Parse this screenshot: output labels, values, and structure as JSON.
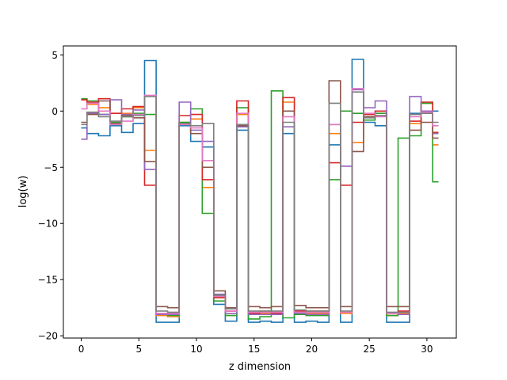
{
  "chart_data": {
    "type": "line",
    "step": true,
    "title": "",
    "xlabel": "z dimension",
    "ylabel": "log(w)",
    "xlim": [
      -1.55,
      32.55
    ],
    "ylim": [
      -20.2,
      5.8
    ],
    "xticks": [
      0,
      5,
      10,
      15,
      20,
      25,
      30
    ],
    "xtick_labels": [
      "0",
      "5",
      "10",
      "15",
      "20",
      "25",
      "30"
    ],
    "yticks": [
      5,
      0,
      -5,
      -10,
      -15,
      -20
    ],
    "ytick_labels": [
      "5",
      "0",
      "−5",
      "−10",
      "−15",
      "−20"
    ],
    "grid": false,
    "legend": "none",
    "x": [
      0,
      1,
      2,
      3,
      4,
      5,
      6,
      7,
      8,
      9,
      10,
      11,
      12,
      13,
      14,
      15,
      16,
      17,
      18,
      19,
      20,
      21,
      22,
      23,
      24,
      25,
      26,
      27,
      28,
      29,
      30,
      31
    ],
    "series": [
      {
        "color": "#1f77b4",
        "values": [
          -1.5,
          -2.0,
          -2.2,
          -1.3,
          -1.9,
          -1.1,
          4.5,
          -18.8,
          -18.8,
          -1.3,
          -2.7,
          -3.2,
          -17.2,
          -18.7,
          -1.7,
          -18.8,
          -18.7,
          -18.8,
          -2.0,
          -18.8,
          -18.7,
          -18.8,
          -3.0,
          -18.8,
          4.6,
          -1.0,
          -1.3,
          -18.8,
          -18.8,
          -0.2,
          0.0,
          0.0
        ]
      },
      {
        "color": "#ff7f0e",
        "values": [
          1.0,
          0.6,
          0.3,
          -0.2,
          -0.2,
          0.3,
          -3.5,
          -18.2,
          -18.3,
          -1.0,
          -0.7,
          -6.8,
          -16.6,
          -18.0,
          -0.3,
          -18.0,
          -18.0,
          -18.0,
          0.8,
          -18.0,
          -18.0,
          -18.0,
          -2.0,
          -18.0,
          -2.8,
          -0.5,
          -0.2,
          -18.2,
          -18.0,
          -1.1,
          0.7,
          -3.0
        ]
      },
      {
        "color": "#2ca02c",
        "values": [
          1.1,
          0.9,
          -0.3,
          -1.0,
          -0.5,
          -0.2,
          -0.3,
          -18.1,
          -18.2,
          -1.0,
          0.2,
          -9.1,
          -16.9,
          -18.2,
          0.3,
          -18.5,
          -18.3,
          1.8,
          -18.4,
          -18.1,
          -18.2,
          -18.2,
          -6.1,
          0.0,
          -0.2,
          -0.8,
          -0.2,
          -18.2,
          -2.4,
          -2.2,
          0.7,
          -6.3
        ]
      },
      {
        "color": "#d62728",
        "values": [
          1.0,
          0.8,
          1.1,
          -0.2,
          0.2,
          0.4,
          -6.6,
          -18.0,
          -18.0,
          -0.4,
          -0.3,
          -6.1,
          -16.6,
          -17.8,
          0.9,
          -18.0,
          -17.8,
          -18.0,
          1.2,
          -17.8,
          -17.8,
          -17.8,
          -4.6,
          -6.6,
          -1.0,
          -0.3,
          0.0,
          -18.0,
          -17.8,
          -0.9,
          0.8,
          -1.9
        ]
      },
      {
        "color": "#9467bd",
        "values": [
          -2.5,
          -0.2,
          -0.3,
          1.0,
          -0.3,
          0.1,
          -5.2,
          -18.1,
          -18.1,
          0.8,
          -1.7,
          -2.7,
          -16.3,
          -18.0,
          -1.4,
          -18.1,
          -18.1,
          -18.1,
          -1.4,
          -18.0,
          -18.1,
          -18.1,
          -1.2,
          -4.9,
          1.9,
          0.3,
          0.9,
          -18.0,
          -18.1,
          1.3,
          0.0,
          -2.0
        ]
      },
      {
        "color": "#8c564b",
        "values": [
          -1.0,
          -0.3,
          0.9,
          -1.1,
          -0.4,
          -0.6,
          -4.5,
          -17.4,
          -17.5,
          -1.1,
          -2.0,
          -5.0,
          -16.0,
          -17.5,
          -1.3,
          -17.4,
          -17.5,
          -17.4,
          0.0,
          -17.3,
          -17.5,
          -17.5,
          2.7,
          -17.4,
          -3.6,
          -0.5,
          -0.4,
          -17.4,
          -17.4,
          -1.7,
          -1.0,
          -2.4
        ]
      },
      {
        "color": "#e377c2",
        "values": [
          0.2,
          0.7,
          0.0,
          -1.2,
          -0.9,
          -0.3,
          1.4,
          -18.0,
          -18.0,
          -1.2,
          -1.5,
          -4.4,
          -16.5,
          -17.8,
          -0.2,
          -17.9,
          -17.9,
          -17.9,
          -0.5,
          -17.9,
          -17.9,
          -17.9,
          -1.2,
          -17.9,
          2.0,
          -0.2,
          -0.5,
          -18.0,
          -17.9,
          -0.5,
          -0.1,
          -1.3
        ]
      },
      {
        "color": "#7f7f7f",
        "values": [
          -1.2,
          -0.1,
          -0.5,
          -0.9,
          -0.5,
          -0.4,
          1.3,
          -17.8,
          -17.9,
          -1.1,
          -1.3,
          -1.1,
          -16.4,
          -17.6,
          -1.2,
          -17.8,
          -17.8,
          -17.8,
          -1.0,
          -17.7,
          -17.8,
          -17.8,
          0.7,
          -17.8,
          1.7,
          -0.6,
          -0.4,
          -17.9,
          -17.9,
          -0.3,
          -0.2,
          -1.0
        ]
      }
    ]
  }
}
